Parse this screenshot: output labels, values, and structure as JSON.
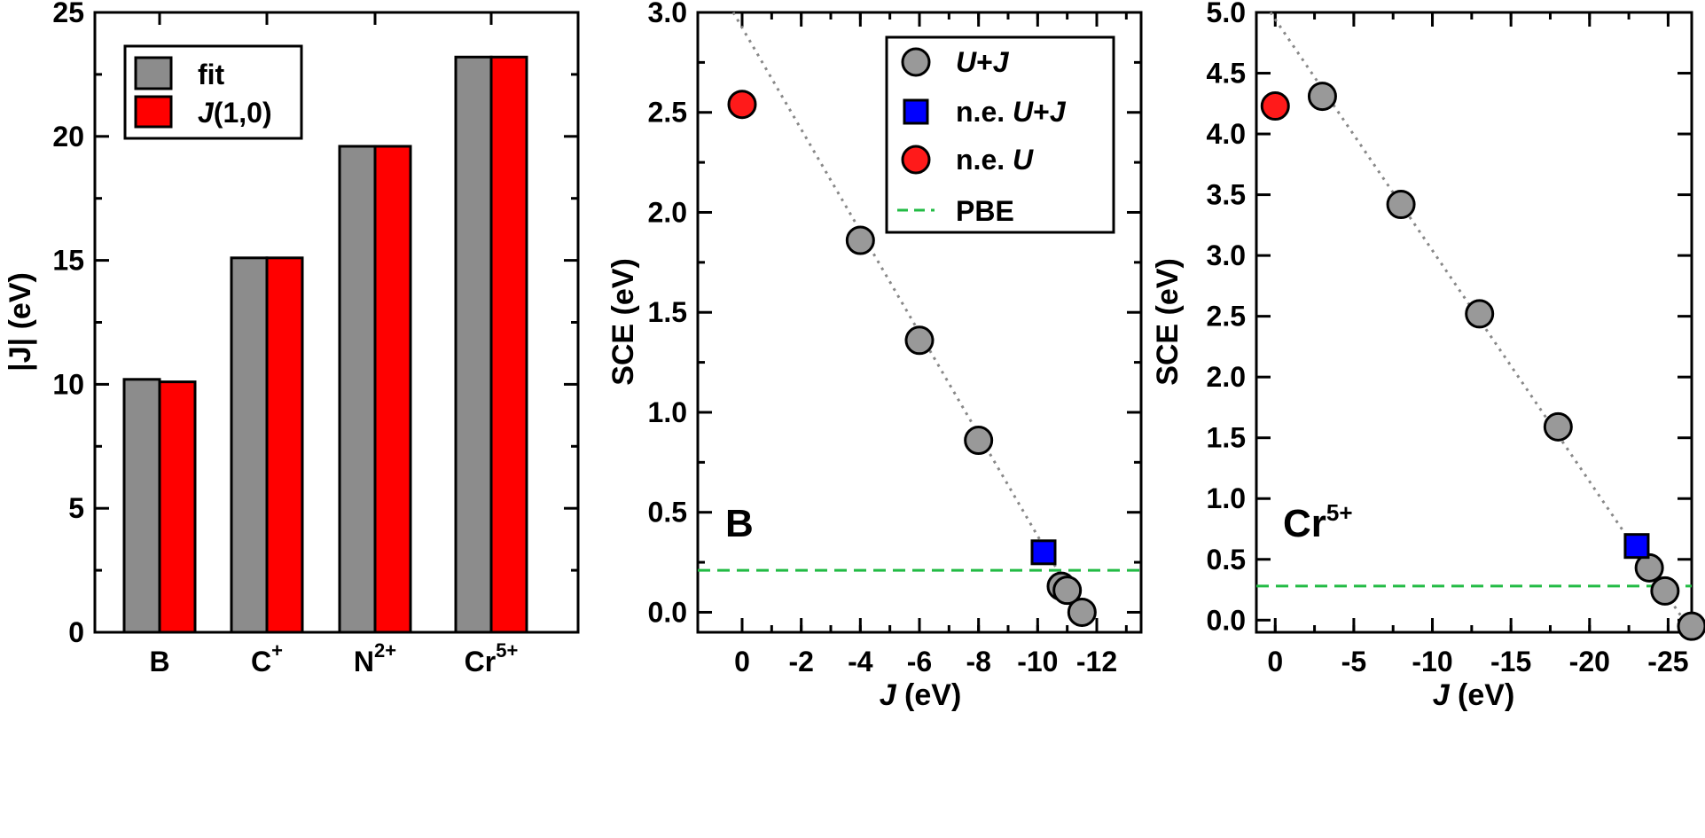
{
  "colors": {
    "fit": "#8c8c8c",
    "j10": "#ff0000",
    "u_plus_j": "#999999",
    "ne_u_plus_j": "#0000ff",
    "ne_u": "#ff1a1a",
    "pbe": "#22bb44",
    "fit_line": "#888888"
  },
  "chart_data": [
    {
      "type": "bar",
      "ylabel": "|J| (eV)",
      "ylim": [
        0,
        25
      ],
      "yticks": [
        "0",
        "5",
        "10",
        "15",
        "20",
        "25"
      ],
      "categories": [
        "B",
        "C",
        "N",
        "Cr"
      ],
      "category_superscripts": [
        "",
        "+",
        "2+",
        "5+"
      ],
      "series": [
        {
          "name": "fit",
          "values": [
            10.2,
            15.1,
            19.6,
            23.2
          ]
        },
        {
          "name": "J(1,0)",
          "name_italic": "J",
          "name_rest": "(1,0)",
          "values": [
            10.1,
            15.1,
            19.6,
            23.2
          ]
        }
      ],
      "legend_position": "top-left"
    },
    {
      "type": "scatter",
      "panel_label": "B",
      "xlabel_italic": "J",
      "xlabel_rest": " (eV)",
      "ylabel": "SCE (eV)",
      "xlim": [
        1.5,
        -13.5
      ],
      "ylim": [
        -0.1,
        3.0
      ],
      "xticks": [
        "0",
        "-2",
        "-4",
        "-6",
        "-8",
        "-10",
        "-12"
      ],
      "yticks": [
        "0.0",
        "0.5",
        "1.0",
        "1.5",
        "2.0",
        "2.5",
        "3.0"
      ],
      "legend": [
        {
          "italic_a": "U",
          "mid": "+",
          "italic_b": "J",
          "prefix": ""
        },
        {
          "prefix": "n.e. ",
          "italic_a": "U",
          "mid": "+",
          "italic_b": "J"
        },
        {
          "prefix": "n.e. ",
          "italic_a": "U",
          "mid": "",
          "italic_b": ""
        },
        {
          "prefix": "PBE",
          "italic_a": "",
          "mid": "",
          "italic_b": ""
        }
      ],
      "series": [
        {
          "key": "u_plus_j",
          "points": [
            [
              -4,
              1.86
            ],
            [
              -6,
              1.36
            ],
            [
              -8,
              0.86
            ],
            [
              -10.8,
              0.13
            ],
            [
              -11.0,
              0.11
            ],
            [
              -11.5,
              0.0
            ]
          ]
        },
        {
          "key": "ne_u_plus_j",
          "points": [
            [
              -10.2,
              0.3
            ]
          ]
        },
        {
          "key": "ne_u",
          "points": [
            [
              0,
              2.54
            ]
          ]
        }
      ],
      "pbe": 0.21,
      "fit_line": [
        [
          0.3,
          3.0
        ],
        [
          -11.5,
          0.0
        ]
      ],
      "legend_position": "top-right"
    },
    {
      "type": "scatter",
      "panel_label": "Cr",
      "panel_label_sup": "5+",
      "xlabel_italic": "J",
      "xlabel_rest": " (eV)",
      "ylabel": "SCE (eV)",
      "xlim": [
        1.2,
        -26.5
      ],
      "ylim": [
        -0.1,
        5.0
      ],
      "xticks": [
        "0",
        "-5",
        "-10",
        "-15",
        "-20",
        "-25"
      ],
      "yticks": [
        "0.0",
        "0.5",
        "1.0",
        "1.5",
        "2.0",
        "2.5",
        "3.0",
        "3.5",
        "4.0",
        "4.5",
        "5.0"
      ],
      "series": [
        {
          "key": "u_plus_j",
          "points": [
            [
              -3,
              4.31
            ],
            [
              -8,
              3.42
            ],
            [
              -13,
              2.52
            ],
            [
              -18,
              1.59
            ],
            [
              -23.8,
              0.43
            ],
            [
              -24.8,
              0.24
            ],
            [
              -26.5,
              -0.05
            ]
          ]
        },
        {
          "key": "ne_u_plus_j",
          "points": [
            [
              -23,
              0.61
            ]
          ]
        },
        {
          "key": "ne_u",
          "points": [
            [
              0,
              4.23
            ]
          ]
        }
      ],
      "pbe": 0.28,
      "fit_line": [
        [
          0.3,
          5.0
        ],
        [
          -26.0,
          0.0
        ]
      ]
    }
  ]
}
